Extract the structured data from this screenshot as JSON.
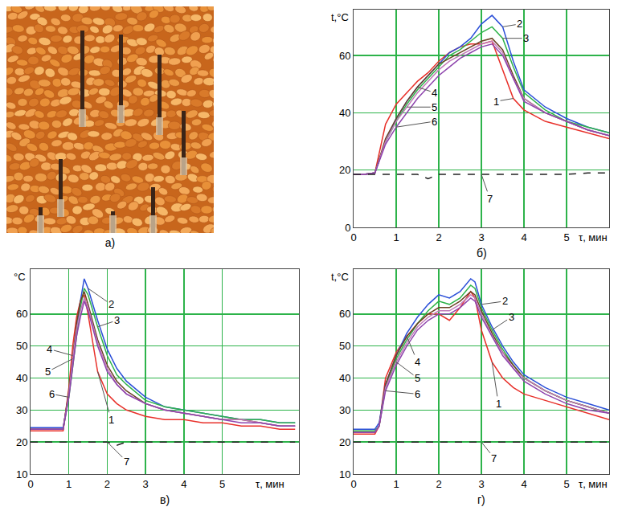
{
  "photo": {
    "caption": "а)"
  },
  "chart_data": [
    {
      "type": "line",
      "title": "б)",
      "x_label": "τ, мин",
      "y_label": "t,°C",
      "x": [
        0,
        0.25,
        0.5,
        0.75,
        1,
        1.25,
        1.5,
        1.75,
        2,
        2.25,
        2.5,
        2.75,
        3,
        3.25,
        3.5,
        3.75,
        4,
        4.5,
        5,
        5.5,
        6
      ],
      "xlim": [
        0,
        6
      ],
      "xticks": [
        0,
        1,
        2,
        3,
        4,
        5
      ],
      "ylim": [
        0,
        76
      ],
      "yticks": [
        0,
        20,
        40,
        60
      ],
      "grid": true,
      "series": [
        {
          "name": "1",
          "color": "#e8302a",
          "values": [
            18.5,
            18.5,
            19,
            36,
            43,
            47,
            51,
            54,
            58,
            61,
            63,
            64,
            64,
            65,
            55,
            45,
            41,
            37,
            35,
            33,
            31
          ]
        },
        {
          "name": "2",
          "color": "#2b4fd8",
          "values": [
            18.5,
            18.5,
            19,
            30,
            38,
            44,
            49,
            53,
            57,
            61,
            63,
            66,
            71,
            74,
            70,
            58,
            48,
            42,
            38,
            35,
            33
          ]
        },
        {
          "name": "3",
          "color": "#2fb34a",
          "values": [
            18.5,
            18.5,
            19,
            30,
            37,
            43,
            48,
            52,
            56,
            60,
            62,
            65,
            68,
            70,
            66,
            56,
            47,
            41,
            37,
            35,
            33
          ]
        },
        {
          "name": "4",
          "color": "#6b4226",
          "values": [
            18.5,
            18.5,
            19,
            31,
            38,
            44,
            49,
            53,
            57,
            59,
            61,
            63,
            65,
            66,
            62,
            53,
            45,
            40,
            37,
            34,
            32
          ]
        },
        {
          "name": "5",
          "color": "#c27bb8",
          "values": [
            18.5,
            18.5,
            19,
            30,
            37,
            42,
            47,
            51,
            55,
            58,
            60,
            62,
            64,
            65,
            61,
            52,
            45,
            40,
            37,
            34,
            32
          ]
        },
        {
          "name": "6",
          "color": "#8e44ad",
          "values": [
            18.5,
            18.5,
            19,
            29,
            35,
            40,
            45,
            49,
            53,
            56,
            59,
            61,
            63,
            64,
            60,
            52,
            44,
            40,
            37,
            34,
            32
          ]
        },
        {
          "name": "7",
          "color": "#222222",
          "line_style": "dashed",
          "values": [
            18.5,
            18.5,
            18.5,
            18.5,
            18.5,
            18.5,
            18.5,
            17,
            18.5,
            18.5,
            18.5,
            18.5,
            18.5,
            18.5,
            18.5,
            18.5,
            18.5,
            18.5,
            18.5,
            19,
            19
          ]
        }
      ],
      "annotations": [
        {
          "series": "2",
          "x": 3.9,
          "y": 71,
          "target_x": 3.5
        },
        {
          "series": "3",
          "x": 4.05,
          "y": 66,
          "target_x": 3.5
        },
        {
          "series": "1",
          "x": 3.35,
          "y": 44,
          "target_x": 3.75
        },
        {
          "series": "4",
          "x": 1.9,
          "y": 47,
          "target_x": 1.5
        },
        {
          "series": "5",
          "x": 1.9,
          "y": 42,
          "target_x": 1.25
        },
        {
          "series": "6",
          "x": 1.9,
          "y": 37,
          "target_x": 1
        },
        {
          "series": "7",
          "x": 3.2,
          "y": 10,
          "target_x": 3
        }
      ]
    },
    {
      "type": "line",
      "title": "в)",
      "x_label": "τ, мин",
      "y_label": "°C",
      "x": [
        0,
        0.5,
        0.85,
        1,
        1.1,
        1.2,
        1.3,
        1.4,
        1.5,
        1.75,
        2,
        2.25,
        2.5,
        3,
        3.5,
        4,
        4.5,
        5,
        5.5,
        6,
        6.5,
        6.9
      ],
      "xlim": [
        0,
        7
      ],
      "xticks": [
        0,
        1,
        2,
        3,
        4,
        5
      ],
      "ylim": [
        10,
        74
      ],
      "yticks": [
        10,
        20,
        30,
        40,
        50,
        60
      ],
      "grid": true,
      "series": [
        {
          "name": "1",
          "color": "#e8302a",
          "values": [
            23.5,
            23.5,
            23.5,
            37,
            50,
            59,
            64,
            66,
            60,
            42,
            35,
            32,
            30,
            28,
            27,
            27,
            26,
            26,
            25,
            25,
            24,
            24
          ]
        },
        {
          "name": "2",
          "color": "#2b4fd8",
          "values": [
            24.5,
            24.5,
            24.5,
            35,
            45,
            55,
            64,
            71,
            68,
            58,
            49,
            43,
            39,
            34,
            31,
            30,
            29,
            28,
            27,
            27,
            26,
            26
          ]
        },
        {
          "name": "3",
          "color": "#2fb34a",
          "values": [
            24,
            24,
            24,
            34,
            44,
            53,
            62,
            68,
            66,
            56,
            47,
            41,
            38,
            33,
            31,
            30,
            29,
            28,
            27,
            27,
            26,
            26
          ]
        },
        {
          "name": "4",
          "color": "#6b4226",
          "values": [
            24,
            24,
            24,
            36,
            47,
            57,
            64,
            67,
            63,
            52,
            44,
            39,
            36,
            32,
            30,
            29,
            28,
            27,
            27,
            26,
            25,
            25
          ]
        },
        {
          "name": "5",
          "color": "#c27bb8",
          "values": [
            24,
            24,
            24,
            35,
            46,
            55,
            61,
            65,
            62,
            51,
            43,
            38,
            35,
            32,
            30,
            29,
            28,
            27,
            27,
            26,
            25,
            25
          ]
        },
        {
          "name": "6",
          "color": "#8e44ad",
          "values": [
            24,
            24,
            24,
            34,
            44,
            53,
            59,
            64,
            61,
            50,
            42,
            38,
            35,
            32,
            30,
            29,
            28,
            27,
            26,
            26,
            25,
            25
          ]
        },
        {
          "name": "7",
          "color": "#222222",
          "line_style": "dashed",
          "values": [
            20,
            20,
            20,
            20,
            20,
            20,
            20,
            20,
            20,
            20,
            20,
            19,
            20,
            20,
            20,
            20,
            20,
            20,
            20,
            20,
            20,
            20
          ]
        }
      ],
      "annotations": [
        {
          "series": "2",
          "x": 2.1,
          "y": 63,
          "target_x": 1.5
        },
        {
          "series": "3",
          "x": 2.25,
          "y": 58,
          "target_x": 1.75
        },
        {
          "series": "1",
          "x": 2.1,
          "y": 27,
          "target_x": 1.75
        },
        {
          "series": "4",
          "x": 0.5,
          "y": 49,
          "target_x": 1.1
        },
        {
          "series": "5",
          "x": 0.45,
          "y": 42,
          "target_x": 1.1
        },
        {
          "series": "6",
          "x": 0.55,
          "y": 35,
          "target_x": 1
        },
        {
          "series": "7",
          "x": 2.5,
          "y": 14,
          "target_x": 2
        }
      ]
    },
    {
      "type": "line",
      "title": "г)",
      "x_label": "τ, мин",
      "y_label": "t,°C",
      "x": [
        0,
        0.25,
        0.5,
        0.6,
        0.75,
        1,
        1.25,
        1.5,
        1.75,
        2,
        2.25,
        2.5,
        2.75,
        2.85,
        3,
        3.25,
        3.5,
        3.75,
        4,
        4.5,
        5,
        5.5,
        6
      ],
      "xlim": [
        0,
        6
      ],
      "xticks": [
        0,
        1,
        2,
        3,
        4,
        5
      ],
      "ylim": [
        10,
        74
      ],
      "yticks": [
        10,
        20,
        30,
        40,
        50,
        60
      ],
      "grid": true,
      "series": [
        {
          "name": "1",
          "color": "#e8302a",
          "values": [
            22.5,
            22.5,
            22.5,
            25,
            40,
            48,
            53,
            57,
            60,
            60,
            58,
            62,
            67,
            65,
            55,
            45,
            40,
            37,
            35,
            33,
            31,
            29,
            27
          ]
        },
        {
          "name": "2",
          "color": "#2b4fd8",
          "values": [
            24,
            24,
            24,
            26,
            38,
            47,
            54,
            59,
            63,
            66,
            65,
            67,
            71,
            70,
            63,
            56,
            50,
            45,
            41,
            37,
            34,
            32,
            30
          ]
        },
        {
          "name": "3",
          "color": "#2fb34a",
          "values": [
            23.5,
            23.5,
            23.5,
            25,
            37,
            46,
            52,
            57,
            61,
            64,
            63,
            65,
            69,
            68,
            62,
            55,
            49,
            44,
            40,
            36,
            33,
            31,
            29
          ]
        },
        {
          "name": "4",
          "color": "#6b4226",
          "values": [
            23,
            23,
            23,
            25,
            38,
            47,
            53,
            57,
            60,
            62,
            62,
            64,
            67,
            66,
            61,
            54,
            48,
            44,
            40,
            36,
            33,
            31,
            29
          ]
        },
        {
          "name": "5",
          "color": "#c27bb8",
          "values": [
            23,
            23,
            23,
            25,
            37,
            45,
            51,
            56,
            59,
            61,
            61,
            63,
            66,
            65,
            60,
            53,
            48,
            43,
            40,
            36,
            33,
            31,
            29
          ]
        },
        {
          "name": "6",
          "color": "#8e44ad",
          "values": [
            23,
            23,
            23,
            25,
            36,
            44,
            50,
            55,
            58,
            60,
            60,
            62,
            65,
            64,
            59,
            53,
            47,
            43,
            39,
            35,
            32,
            30,
            29
          ]
        },
        {
          "name": "7",
          "color": "#222222",
          "line_style": "dashed",
          "values": [
            20,
            20,
            20,
            20,
            20,
            20,
            20,
            20,
            20,
            20,
            20,
            20,
            20,
            20,
            20,
            20,
            20,
            20,
            20,
            20,
            20,
            20,
            20
          ]
        }
      ],
      "annotations": [
        {
          "series": "2",
          "x": 3.55,
          "y": 64,
          "target_x": 3
        },
        {
          "series": "3",
          "x": 3.7,
          "y": 59,
          "target_x": 3.25
        },
        {
          "series": "1",
          "x": 3.4,
          "y": 32,
          "target_x": 3.25
        },
        {
          "series": "4",
          "x": 1.5,
          "y": 45,
          "target_x": 1.25
        },
        {
          "series": "5",
          "x": 1.5,
          "y": 40,
          "target_x": 1
        },
        {
          "series": "6",
          "x": 1.5,
          "y": 35,
          "target_x": 0.75
        },
        {
          "series": "7",
          "x": 3.3,
          "y": 15,
          "target_x": 3
        }
      ]
    }
  ]
}
